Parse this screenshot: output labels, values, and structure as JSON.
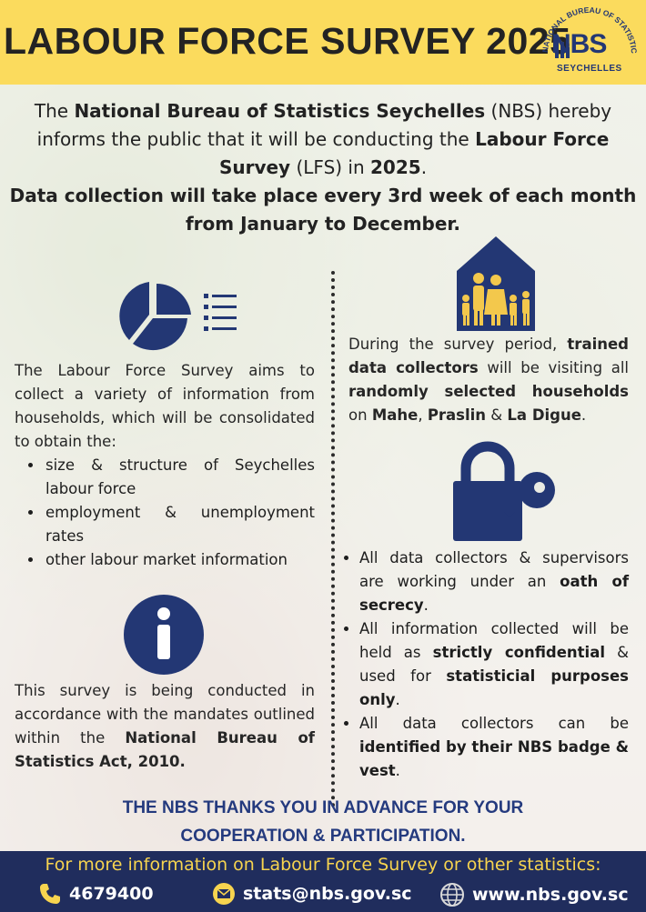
{
  "header": {
    "title": "LABOUR FORCE SURVEY 2025",
    "logo": {
      "ring_text": "NATIONAL BUREAU OF STATISTICS",
      "mark": "NBS",
      "subtitle": "SEYCHELLES"
    },
    "background_color": "#fbdb5d"
  },
  "intro": {
    "line1_pre": "The ",
    "line1_org": "National Bureau of Statistics Seychelles",
    "line1_mid": " (NBS) hereby informs the public that it will be conducting the ",
    "line1_lfs": "Labour Force Survey",
    "line1_abbr": " (LFS) in ",
    "line1_year": "2025",
    "line1_end": ".",
    "line2": "Data collection will take place every 3rd week of each month from January to December."
  },
  "left": {
    "aims": "The Labour Force Survey aims to collect a variety of information from households, which will be consolidated to obtain the:",
    "bullets": [
      "size & structure of Seychelles labour force",
      "employment & unemployment rates",
      "other labour market information"
    ],
    "mandate_pre": "This survey is being conducted in accordance with the mandates outlined within the ",
    "mandate_act": "National Bureau of Statistics Act, 2010."
  },
  "right": {
    "period_pre": "During the survey period, ",
    "period_b1": "trained data collectors",
    "period_mid": " will be visiting all ",
    "period_b2": "randomly selected households",
    "period_mid2": " on ",
    "period_b3": "Mahe",
    "period_sep1": ", ",
    "period_b4": "Praslin",
    "period_sep2": " & ",
    "period_b5": "La Digue",
    "period_end": ".",
    "b1_pre": "All data collectors & supervisors are working under an ",
    "b1_bold": "oath of secrecy",
    "b1_end": ".",
    "b2_pre": "All information collected will be held as ",
    "b2_bold1": "strictly confidential",
    "b2_mid": " & used for ",
    "b2_bold2": "statisticial purposes only",
    "b2_end": ".",
    "b3_pre": "All data collectors can be ",
    "b3_bold": "identified by their NBS badge & vest",
    "b3_end": "."
  },
  "thanks": {
    "line1": "THE NBS THANKS YOU IN ADVANCE FOR YOUR",
    "line2": "COOPERATION & PARTICIPATION."
  },
  "footer": {
    "more_info": "For more information on Labour Force Survey or other statistics:",
    "phone": "4679400",
    "email": "stats@nbs.gov.sc",
    "website": "www.nbs.gov.sc",
    "icons": [
      "phone-icon",
      "email-icon",
      "globe-icon"
    ]
  },
  "colors": {
    "navy": "#202d5d",
    "yellow": "#fbdb5d",
    "icon_blue": "#233774",
    "footer_text": "#f7d44f"
  }
}
